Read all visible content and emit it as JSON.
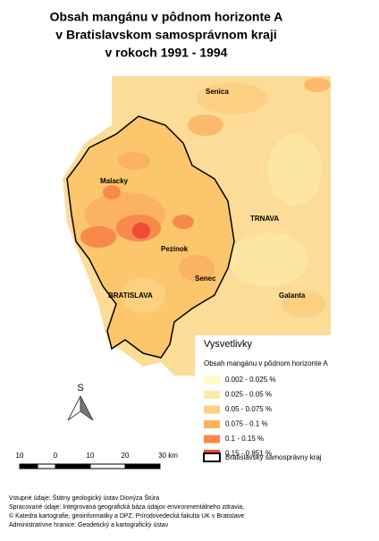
{
  "title": [
    "Obsah mangánu v pôdnom horizonte A",
    "v Bratislavskom samosprávnom kraji",
    "v rokoch 1991 - 1994"
  ],
  "places": [
    {
      "label": "Senica"
    },
    {
      "label": "Malacky"
    },
    {
      "label": "TRNAVA"
    },
    {
      "label": "Pezinok"
    },
    {
      "label": "Senec"
    },
    {
      "label": "BRATISLAVA"
    },
    {
      "label": "Galanta"
    }
  ],
  "legend": {
    "title": "Vysvetlivky",
    "subtitle": "Obsah mangánu v pôdnom horizonte A",
    "classes": [
      {
        "label": "0.002 - 0.025 %",
        "color": "#fefbc8"
      },
      {
        "label": "0.025 - 0.05 %",
        "color": "#fde9a6"
      },
      {
        "label": "0.05 - 0.075 %",
        "color": "#fdd07f"
      },
      {
        "label": "0.075 - 0.1 %",
        "color": "#fbb261"
      },
      {
        "label": "0.1 - 0.15 %",
        "color": "#f7894a"
      },
      {
        "label": "0.15 - 0.851 %",
        "color": "#ef4b37"
      }
    ],
    "boundary": "Bratislavský samosprávny kraj"
  },
  "north": "S",
  "scale": [
    "10",
    "0",
    "10",
    "20",
    "30 km"
  ],
  "credits": [
    "Vstupné údaje: Štátny geologický ústav Dionýza Štúra",
    "Spracované údaje: Integrovaná geografická báza údajov environmentálneho zdravia,",
    "© Katedra kartografie, geoinformatiky a DPZ, Prírodovedecká fakulta UK v Bratislave",
    "Administratívne hranice: Geodetický a kartografický ústav"
  ]
}
